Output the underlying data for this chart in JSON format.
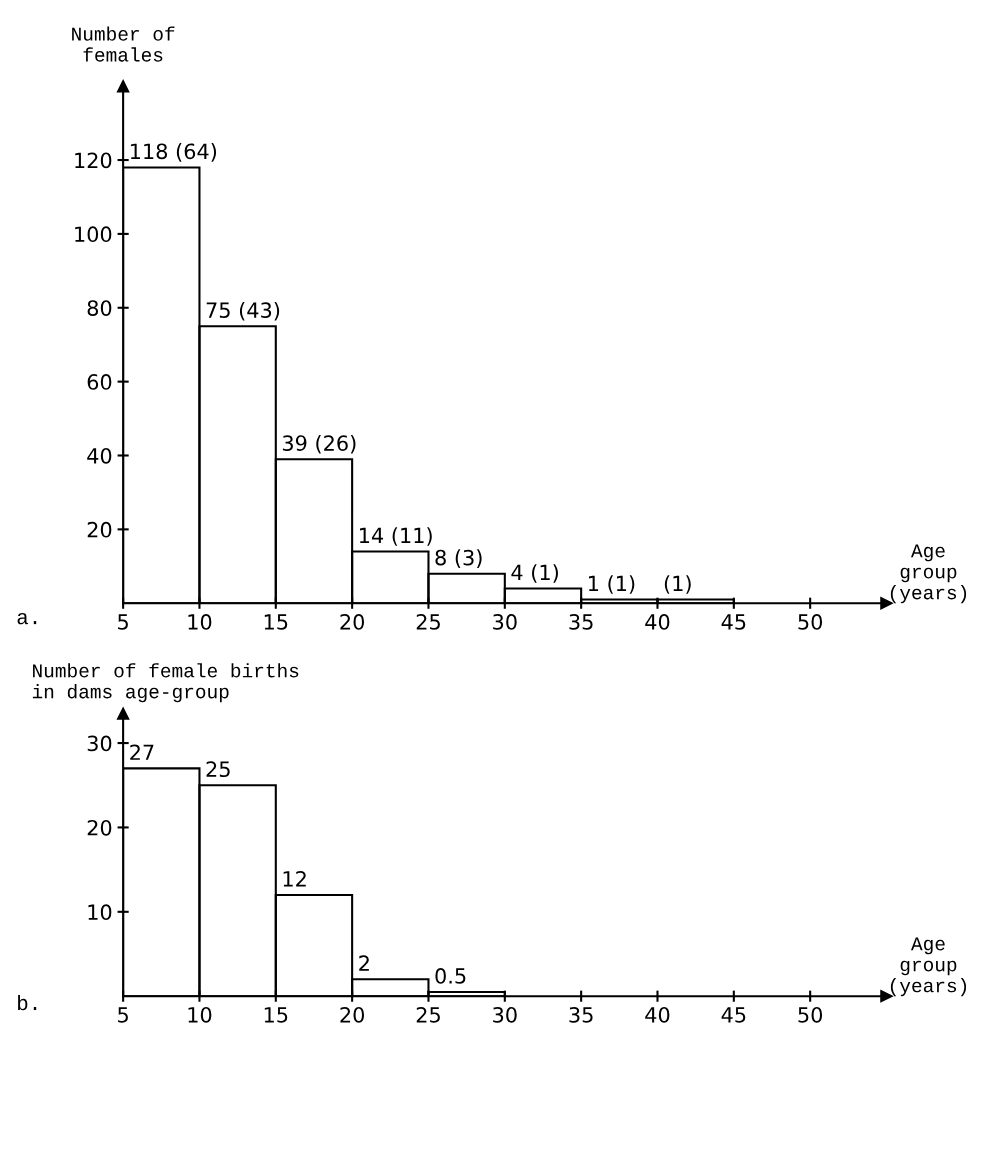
{
  "chart_data": [
    {
      "type": "histogram",
      "ylabel": "Number of\nfemales",
      "xlabel": "Age\ngroup\n(years)",
      "annotations": [
        "a."
      ],
      "bins": [
        5,
        10,
        15,
        20,
        25,
        30,
        35,
        40,
        45
      ],
      "values": [
        118,
        75,
        39,
        14,
        8,
        4,
        1,
        1
      ],
      "value_labels": [
        "118 (64)",
        "75 (43)",
        "39 (26)",
        "14 (11)",
        "8 (3)",
        "4 (1)",
        "1 (1)",
        "(1)"
      ],
      "xlim": [
        5,
        55
      ],
      "ylim": [
        0,
        140
      ],
      "xticks": [
        5,
        10,
        15,
        20,
        25,
        30,
        35,
        40,
        45,
        50
      ],
      "yticks": [
        20,
        40,
        60,
        80,
        100,
        120
      ]
    },
    {
      "type": "histogram",
      "ylabel": "Number of female births\nin dams age-group",
      "xlabel": "Age\ngroup\n(years)",
      "annotations": [
        "b."
      ],
      "bins": [
        5,
        10,
        15,
        20,
        25,
        30
      ],
      "values": [
        27,
        25,
        12,
        2,
        0.5
      ],
      "data_labels": true,
      "xlim": [
        5,
        55
      ],
      "ylim": [
        0,
        33.5
      ],
      "xticks": [
        5,
        10,
        15,
        20,
        25,
        30,
        35,
        40,
        45,
        50
      ],
      "yticks": [
        10,
        20,
        30
      ]
    }
  ]
}
